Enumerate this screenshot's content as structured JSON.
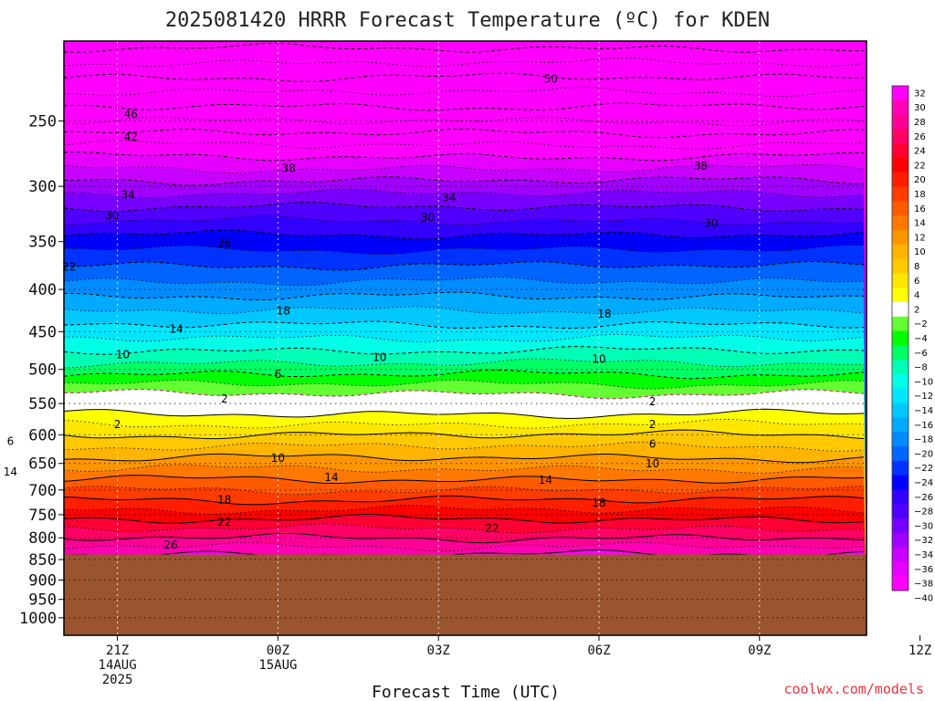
{
  "chart_data": {
    "type": "heatmap",
    "title": "2025081420 HRRR Forecast Temperature (ºC) for KDEN",
    "xlabel": "Forecast Time (UTC)",
    "credit": "coolwx.com/models",
    "x_ticks": [
      {
        "label": "21Z",
        "sub1": "14AUG",
        "sub2": "2025"
      },
      {
        "label": "00Z",
        "sub1": "15AUG",
        "sub2": ""
      },
      {
        "label": "03Z",
        "sub1": "",
        "sub2": ""
      },
      {
        "label": "06Z",
        "sub1": "",
        "sub2": ""
      },
      {
        "label": "09Z",
        "sub1": "",
        "sub2": ""
      },
      {
        "label": "12Z",
        "sub1": "",
        "sub2": ""
      }
    ],
    "y_ticks": [
      "250",
      "300",
      "350",
      "400",
      "450",
      "500",
      "550",
      "600",
      "650",
      "700",
      "750",
      "800",
      "850",
      "900",
      "950",
      "1000"
    ],
    "y_axis_note": "pressure levels in hPa, decreasing upward, log-pressure scale",
    "surface_pressure_hpa": 838,
    "temperature_profile": [
      {
        "p": 838,
        "t": 30
      },
      {
        "p": 800,
        "t": 26
      },
      {
        "p": 750,
        "t": 21
      },
      {
        "p": 700,
        "t": 16
      },
      {
        "p": 650,
        "t": 11
      },
      {
        "p": 600,
        "t": 6
      },
      {
        "p": 550,
        "t": 0
      },
      {
        "p": 500,
        "t": -7
      },
      {
        "p": 450,
        "t": -13
      },
      {
        "p": 400,
        "t": -19
      },
      {
        "p": 350,
        "t": -25
      },
      {
        "p": 300,
        "t": -33
      },
      {
        "p": 250,
        "t": -44
      },
      {
        "p": 200,
        "t": -55
      }
    ],
    "contour_labels": [
      {
        "text": "50",
        "time": 8.1,
        "p": 222
      },
      {
        "text": "46",
        "time": 0.25,
        "p": 245
      },
      {
        "text": "42",
        "time": 0.25,
        "p": 261
      },
      {
        "text": "38",
        "time": 3.2,
        "p": 285
      },
      {
        "text": "38",
        "time": 10.9,
        "p": 283
      },
      {
        "text": "34",
        "time": 0.2,
        "p": 307
      },
      {
        "text": "34",
        "time": 6.2,
        "p": 309
      },
      {
        "text": "30",
        "time": -0.1,
        "p": 325
      },
      {
        "text": "30",
        "time": 5.8,
        "p": 327
      },
      {
        "text": "30",
        "time": 11.1,
        "p": 332
      },
      {
        "text": "26",
        "time": 2.0,
        "p": 351
      },
      {
        "text": "22",
        "time": -0.9,
        "p": 375
      },
      {
        "text": "18",
        "time": 3.1,
        "p": 424
      },
      {
        "text": "18",
        "time": 9.1,
        "p": 428
      },
      {
        "text": "14",
        "time": 1.1,
        "p": 446
      },
      {
        "text": "10",
        "time": 0.1,
        "p": 479
      },
      {
        "text": "10",
        "time": 4.9,
        "p": 483
      },
      {
        "text": "10",
        "time": 9.0,
        "p": 485
      },
      {
        "text": "6",
        "time": 3.0,
        "p": 506
      },
      {
        "text": "2",
        "time": 2.0,
        "p": 542
      },
      {
        "text": "2",
        "time": 10.0,
        "p": 546
      },
      {
        "text": "2",
        "time": 0.0,
        "p": 582
      },
      {
        "text": "2",
        "time": 10.0,
        "p": 582
      },
      {
        "text": "6",
        "time": -2.0,
        "p": 610
      },
      {
        "text": "6",
        "time": 10.0,
        "p": 615
      },
      {
        "text": "10",
        "time": 3.0,
        "p": 640
      },
      {
        "text": "10",
        "time": 10.0,
        "p": 650
      },
      {
        "text": "14",
        "time": -2.0,
        "p": 665
      },
      {
        "text": "14",
        "time": 4.0,
        "p": 675
      },
      {
        "text": "14",
        "time": 8.0,
        "p": 680
      },
      {
        "text": "18",
        "time": 2.0,
        "p": 718
      },
      {
        "text": "18",
        "time": 9.0,
        "p": 725
      },
      {
        "text": "22",
        "time": 2.0,
        "p": 765
      },
      {
        "text": "22",
        "time": 7.0,
        "p": 778
      },
      {
        "text": "26",
        "time": 1.0,
        "p": 815
      }
    ],
    "time_range": [
      -1.0,
      14.0
    ],
    "pressure_range": [
      1050,
      200
    ],
    "colorbar": {
      "levels": [
        32,
        30,
        28,
        26,
        24,
        22,
        20,
        18,
        16,
        14,
        12,
        10,
        8,
        6,
        4,
        2,
        -2,
        -4,
        -6,
        -8,
        -10,
        -12,
        -14,
        -16,
        -18,
        -20,
        -22,
        -24,
        -26,
        -28,
        -30,
        -32,
        -34,
        -36,
        -38,
        -40
      ],
      "colors": [
        "#ff00ff",
        "#ff00b4",
        "#ff0096",
        "#ff0064",
        "#ff0032",
        "#ff0000",
        "#ff1e00",
        "#ff3c00",
        "#ff5a00",
        "#ff7800",
        "#ff9600",
        "#ffb400",
        "#ffc800",
        "#ffe600",
        "#ffff00",
        "#ffffff",
        "#64ff32",
        "#00ff00",
        "#00ff64",
        "#00ffb4",
        "#00ffe6",
        "#00e6ff",
        "#00c8ff",
        "#00aaff",
        "#008cff",
        "#0064ff",
        "#0032ff",
        "#0000ff",
        "#3200ff",
        "#5000ff",
        "#7800ff",
        "#a000ff",
        "#c800ff",
        "#e600ff",
        "#ff00ff"
      ]
    },
    "ground_color": "#9a5530"
  }
}
